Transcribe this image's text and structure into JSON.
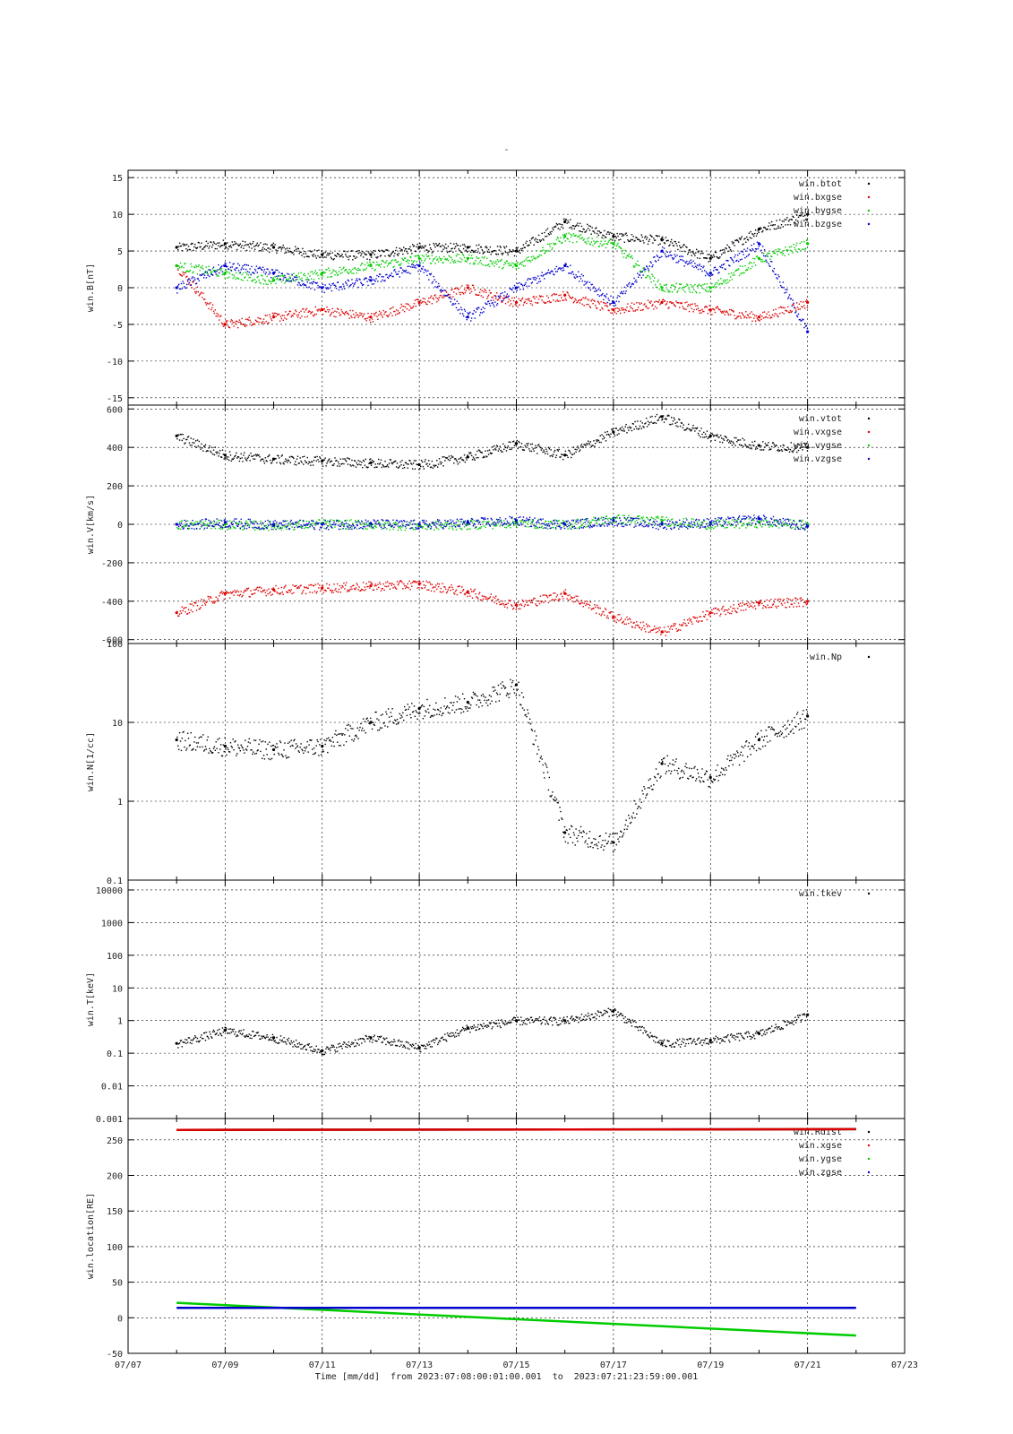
{
  "title": "-",
  "footer": {
    "axis_label": "Time [mm/dd]",
    "from_label": "from",
    "from_value": "2023:07:08:00:01:00.001",
    "to_label": "to",
    "to_value": "2023:07:21:23:59:00.001"
  },
  "colors": {
    "black": "#000000",
    "red": "#dd0000",
    "green": "#00cc00",
    "blue": "#0000cc"
  },
  "chart_data": [
    {
      "type": "scatter",
      "ylabel": "win.B[nT]",
      "ylim": [
        -16,
        16
      ],
      "yscale": "linear",
      "yticks": [
        -15,
        -10,
        -5,
        0,
        5,
        10,
        15
      ],
      "ytick_labels": [
        "-15",
        "-10",
        "-5",
        "0",
        "5",
        "10",
        "15"
      ],
      "grid": true,
      "legend": "top-right",
      "x": [
        "07/08",
        "07/09",
        "07/10",
        "07/11",
        "07/12",
        "07/13",
        "07/14",
        "07/15",
        "07/16",
        "07/17",
        "07/18",
        "07/19",
        "07/20",
        "07/21"
      ],
      "series": [
        {
          "name": "win.btot",
          "color": "#000000",
          "values": [
            5.5,
            6,
            5.5,
            4.5,
            4.5,
            5.5,
            5.5,
            5,
            9,
            7,
            6.5,
            4,
            8,
            10
          ]
        },
        {
          "name": "win.bxgse",
          "color": "#dd0000",
          "values": [
            3,
            -5,
            -4,
            -3,
            -4,
            -2,
            0,
            -2,
            -1,
            -3,
            -2,
            -3,
            -4,
            -2
          ]
        },
        {
          "name": "win.bygse",
          "color": "#00cc00",
          "values": [
            3,
            2,
            1,
            2,
            3,
            4,
            4,
            3,
            7,
            6,
            0,
            0,
            4,
            6
          ]
        },
        {
          "name": "win.bzgse",
          "color": "#0000cc",
          "values": [
            0,
            3,
            2,
            0,
            1,
            3,
            -4,
            0,
            3,
            -2,
            5,
            2,
            6,
            -6
          ]
        }
      ]
    },
    {
      "type": "scatter",
      "ylabel": "win.V[km/s]",
      "ylim": [
        -620,
        620
      ],
      "yscale": "linear",
      "yticks": [
        -600,
        -400,
        -200,
        0,
        200,
        400,
        600
      ],
      "ytick_labels": [
        "-600",
        "-400",
        "-200",
        "0",
        "200",
        "400",
        "600"
      ],
      "grid": true,
      "legend": "top-right",
      "x": [
        "07/08",
        "07/09",
        "07/10",
        "07/11",
        "07/12",
        "07/13",
        "07/14",
        "07/15",
        "07/16",
        "07/17",
        "07/18",
        "07/19",
        "07/20",
        "07/21"
      ],
      "series": [
        {
          "name": "win.vtot",
          "color": "#000000",
          "values": [
            460,
            360,
            340,
            330,
            320,
            310,
            350,
            420,
            360,
            480,
            560,
            460,
            410,
            400
          ]
        },
        {
          "name": "win.vxgse",
          "color": "#dd0000",
          "values": [
            -460,
            -360,
            -340,
            -330,
            -320,
            -310,
            -350,
            -420,
            -360,
            -480,
            -560,
            -460,
            -410,
            -400
          ]
        },
        {
          "name": "win.vygse",
          "color": "#00cc00",
          "values": [
            0,
            0,
            -5,
            5,
            0,
            -5,
            0,
            10,
            0,
            30,
            20,
            0,
            10,
            0
          ]
        },
        {
          "name": "win.vzgse",
          "color": "#0000cc",
          "values": [
            0,
            10,
            0,
            0,
            5,
            0,
            10,
            20,
            0,
            20,
            0,
            10,
            30,
            -10
          ]
        }
      ]
    },
    {
      "type": "scatter",
      "ylabel": "win.N[1/cc]",
      "ylim": [
        0.1,
        100
      ],
      "yscale": "log",
      "yticks": [
        0.1,
        1,
        10,
        100
      ],
      "ytick_labels": [
        "0.1",
        "1",
        "10",
        "100"
      ],
      "grid": true,
      "legend": "top-right",
      "x": [
        "07/08",
        "07/09",
        "07/10",
        "07/11",
        "07/12",
        "07/13",
        "07/14",
        "07/15",
        "07/16",
        "07/17",
        "07/18",
        "07/19",
        "07/20",
        "07/21"
      ],
      "series": [
        {
          "name": "win.Np",
          "color": "#000000",
          "values": [
            6,
            5,
            4.5,
            5,
            10,
            15,
            18,
            30,
            0.4,
            0.3,
            3,
            2,
            6,
            12
          ]
        }
      ]
    },
    {
      "type": "scatter",
      "ylabel": "win.T[keV]",
      "ylim": [
        0.001,
        20000
      ],
      "yscale": "log",
      "yticks": [
        0.001,
        0.01,
        0.1,
        1,
        10,
        100,
        1000,
        10000
      ],
      "ytick_labels": [
        "0.001",
        "0.01",
        "0.1",
        "1",
        "10",
        "100",
        "1000",
        "10000"
      ],
      "grid": true,
      "legend": "top-right",
      "x": [
        "07/08",
        "07/09",
        "07/10",
        "07/11",
        "07/12",
        "07/13",
        "07/14",
        "07/15",
        "07/16",
        "07/17",
        "07/18",
        "07/19",
        "07/20",
        "07/21"
      ],
      "series": [
        {
          "name": "win.tkev",
          "color": "#000000",
          "values": [
            0.2,
            0.5,
            0.3,
            0.12,
            0.3,
            0.15,
            0.6,
            1,
            1,
            2,
            0.2,
            0.25,
            0.4,
            1.5
          ]
        }
      ]
    },
    {
      "type": "line",
      "ylabel": "win.location[RE]",
      "ylim": [
        -50,
        280
      ],
      "yscale": "linear",
      "yticks": [
        -50,
        0,
        50,
        100,
        150,
        200,
        250
      ],
      "ytick_labels": [
        "-50",
        "0",
        "50",
        "100",
        "150",
        "200",
        "250"
      ],
      "grid": true,
      "legend": "top-right",
      "x": [
        "07/08",
        "07/21 23:59"
      ],
      "series": [
        {
          "name": "win.Rdist",
          "color": "#000000",
          "values": [
            264,
            265
          ]
        },
        {
          "name": "win.xgse",
          "color": "#dd0000",
          "values": [
            264,
            265
          ]
        },
        {
          "name": "win.ygse",
          "color": "#00cc00",
          "values": [
            21,
            -25
          ]
        },
        {
          "name": "win.zgse",
          "color": "#0000cc",
          "values": [
            14,
            14
          ]
        }
      ]
    }
  ],
  "xaxis": {
    "ticks": [
      "07/07",
      "07/09",
      "07/11",
      "07/13",
      "07/15",
      "07/17",
      "07/19",
      "07/21",
      "07/23"
    ]
  }
}
